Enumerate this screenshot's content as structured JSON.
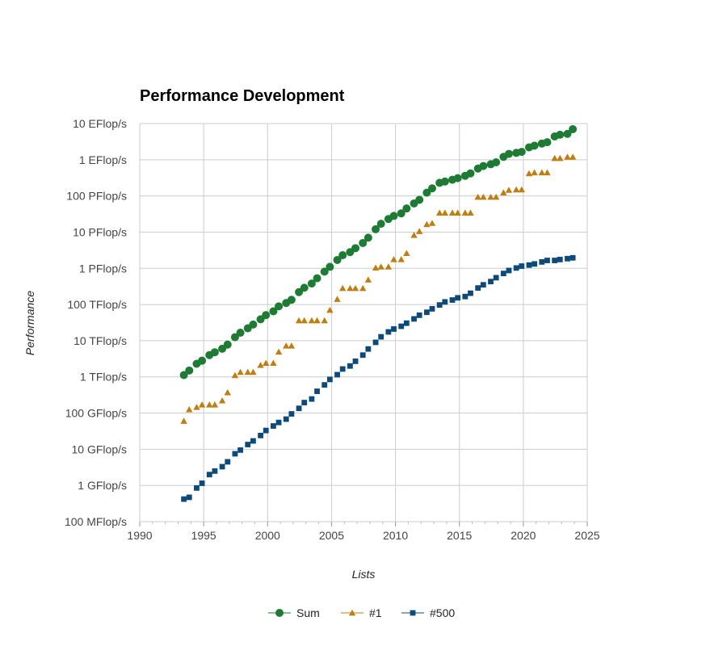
{
  "chart_data": {
    "type": "scatter",
    "title": "Performance Development",
    "xlabel": "Lists",
    "ylabel": "Performance",
    "xlim": [
      1990,
      2025
    ],
    "x_ticks": [
      1990,
      1995,
      2000,
      2005,
      2010,
      2015,
      2020,
      2025
    ],
    "y_scale": "log",
    "y_unit": "Flop/s",
    "ylim": [
      100000000.0,
      1e+19
    ],
    "y_ticks": [
      {
        "value": 1e+19,
        "label": "10 EFlop/s"
      },
      {
        "value": 1e+18,
        "label": "1 EFlop/s"
      },
      {
        "value": 1e+17,
        "label": "100 PFlop/s"
      },
      {
        "value": 1e+16,
        "label": "10 PFlop/s"
      },
      {
        "value": 1000000000000000.0,
        "label": "1 PFlop/s"
      },
      {
        "value": 100000000000000.0,
        "label": "100 TFlop/s"
      },
      {
        "value": 10000000000000.0,
        "label": "10 TFlop/s"
      },
      {
        "value": 1000000000000.0,
        "label": "1 TFlop/s"
      },
      {
        "value": 100000000000.0,
        "label": "100 GFlop/s"
      },
      {
        "value": 10000000000.0,
        "label": "10 GFlop/s"
      },
      {
        "value": 1000000000.0,
        "label": "1 GFlop/s"
      },
      {
        "value": 100000000.0,
        "label": "100 MFlop/s"
      }
    ],
    "grid": true,
    "legend_position": "bottom-center",
    "series": [
      {
        "name": "Sum",
        "color": "#1e7b34",
        "marker": "circle",
        "x": [
          1993.45,
          1993.87,
          1994.45,
          1994.87,
          1995.45,
          1995.87,
          1996.45,
          1996.87,
          1997.45,
          1997.87,
          1998.45,
          1998.87,
          1999.45,
          1999.87,
          2000.45,
          2000.87,
          2001.45,
          2001.87,
          2002.45,
          2002.87,
          2003.45,
          2003.87,
          2004.45,
          2004.87,
          2005.45,
          2005.87,
          2006.45,
          2006.87,
          2007.45,
          2007.87,
          2008.45,
          2008.87,
          2009.45,
          2009.87,
          2010.45,
          2010.87,
          2011.45,
          2011.87,
          2012.45,
          2012.87,
          2013.45,
          2013.87,
          2014.45,
          2014.87,
          2015.45,
          2015.87,
          2016.45,
          2016.87,
          2017.45,
          2017.87,
          2018.45,
          2018.87,
          2019.45,
          2019.87,
          2020.45,
          2020.87,
          2021.45,
          2021.87,
          2022.45,
          2022.87,
          2023.45,
          2023.87
        ],
        "y": [
          1120000000000.0,
          1500000000000.0,
          2300000000000.0,
          2800000000000.0,
          4000000000000.0,
          4800000000000.0,
          6000000000000.0,
          7800000000000.0,
          12500000000000.0,
          16600000000000.0,
          22000000000000.0,
          28000000000000.0,
          39000000000000.0,
          51000000000000.0,
          65000000000000.0,
          89000000000000.0,
          110000000000000.0,
          135000000000000.0,
          220000000000000.0,
          290000000000000.0,
          380000000000000.0,
          530000000000000.0,
          810000000000000.0,
          1100000000000000.0,
          1700000000000000.0,
          2300000000000000.0,
          2800000000000000.0,
          3600000000000000.0,
          5000000000000000.0,
          7000000000000000.0,
          1.2e+16,
          1.7e+16,
          2.3e+16,
          2.8e+16,
          3.3e+16,
          4.5e+16,
          6.2e+16,
          7.8e+16,
          1.23e+17,
          1.62e+17,
          2.3e+17,
          2.5e+17,
          2.8e+17,
          3.1e+17,
          3.6e+17,
          4.2e+17,
          5.7e+17,
          6.7e+17,
          7.5e+17,
          8.5e+17,
          1.2e+18,
          1.45e+18,
          1.55e+18,
          1.65e+18,
          2.2e+18,
          2.45e+18,
          2.8e+18,
          3.05e+18,
          4.4e+18,
          4.9e+18,
          5.2e+18,
          7e+18
        ]
      },
      {
        "name": "#1",
        "color": "#c07e10",
        "marker": "triangle",
        "x": [
          1993.45,
          1993.87,
          1994.45,
          1994.87,
          1995.45,
          1995.87,
          1996.45,
          1996.87,
          1997.45,
          1997.87,
          1998.45,
          1998.87,
          1999.45,
          1999.87,
          2000.45,
          2000.87,
          2001.45,
          2001.87,
          2002.45,
          2002.87,
          2003.45,
          2003.87,
          2004.45,
          2004.87,
          2005.45,
          2005.87,
          2006.45,
          2006.87,
          2007.45,
          2007.87,
          2008.45,
          2008.87,
          2009.45,
          2009.87,
          2010.45,
          2010.87,
          2011.45,
          2011.87,
          2012.45,
          2012.87,
          2013.45,
          2013.87,
          2014.45,
          2014.87,
          2015.45,
          2015.87,
          2016.45,
          2016.87,
          2017.45,
          2017.87,
          2018.45,
          2018.87,
          2019.45,
          2019.87,
          2020.45,
          2020.87,
          2021.45,
          2021.87,
          2022.45,
          2022.87,
          2023.45,
          2023.87
        ],
        "y": [
          60000000000.0,
          125000000000.0,
          145000000000.0,
          170000000000.0,
          170000000000.0,
          170000000000.0,
          220000000000.0,
          370000000000.0,
          1100000000000.0,
          1350000000000.0,
          1350000000000.0,
          1350000000000.0,
          2100000000000.0,
          2400000000000.0,
          2400000000000.0,
          4900000000000.0,
          7200000000000.0,
          7200000000000.0,
          36000000000000.0,
          36000000000000.0,
          36000000000000.0,
          36000000000000.0,
          36000000000000.0,
          70000000000000.0,
          140000000000000.0,
          280000000000000.0,
          280000000000000.0,
          280000000000000.0,
          280000000000000.0,
          480000000000000.0,
          1030000000000000.0,
          1100000000000000.0,
          1100000000000000.0,
          1760000000000000.0,
          1760000000000000.0,
          2600000000000000.0,
          8200000000000000.0,
          1.05e+16,
          1.63e+16,
          1.76e+16,
          3.4e+16,
          3.4e+16,
          3.4e+16,
          3.4e+16,
          3.4e+16,
          3.4e+16,
          9.3e+16,
          9.3e+16,
          9.3e+16,
          9.3e+16,
          1.23e+17,
          1.45e+17,
          1.49e+17,
          1.49e+17,
          4.15e+17,
          4.42e+17,
          4.42e+17,
          4.42e+17,
          1.1e+18,
          1.1e+18,
          1.19e+18,
          1.19e+18
        ]
      },
      {
        "name": "#500",
        "color": "#0d4a7a",
        "marker": "square",
        "x": [
          1993.45,
          1993.87,
          1994.45,
          1994.87,
          1995.45,
          1995.87,
          1996.45,
          1996.87,
          1997.45,
          1997.87,
          1998.45,
          1998.87,
          1999.45,
          1999.87,
          2000.45,
          2000.87,
          2001.45,
          2001.87,
          2002.45,
          2002.87,
          2003.45,
          2003.87,
          2004.45,
          2004.87,
          2005.45,
          2005.87,
          2006.45,
          2006.87,
          2007.45,
          2007.87,
          2008.45,
          2008.87,
          2009.45,
          2009.87,
          2010.45,
          2010.87,
          2011.45,
          2011.87,
          2012.45,
          2012.87,
          2013.45,
          2013.87,
          2014.45,
          2014.87,
          2015.45,
          2015.87,
          2016.45,
          2016.87,
          2017.45,
          2017.87,
          2018.45,
          2018.87,
          2019.45,
          2019.87,
          2020.45,
          2020.87,
          2021.45,
          2021.87,
          2022.45,
          2022.87,
          2023.45,
          2023.87
        ],
        "y": [
          420000000.0,
          470000000.0,
          850000000.0,
          1150000000.0,
          2000000000.0,
          2500000000.0,
          3300000000.0,
          4500000000.0,
          7500000000.0,
          9500000000.0,
          13500000000.0,
          17000000000.0,
          24000000000.0,
          33000000000.0,
          44000000000.0,
          55000000000.0,
          68000000000.0,
          95000000000.0,
          135000000000.0,
          195000000000.0,
          245000000000.0,
          400000000000.0,
          600000000000.0,
          850000000000.0,
          1150000000000.0,
          1650000000000.0,
          2000000000000.0,
          2700000000000.0,
          4000000000000.0,
          5900000000000.0,
          9000000000000.0,
          12800000000000.0,
          17500000000000.0,
          21000000000000.0,
          25000000000000.0,
          30500000000000.0,
          40000000000000.0,
          50500000000000.0,
          61000000000000.0,
          76000000000000.0,
          97000000000000.0,
          118000000000000.0,
          133000000000000.0,
          153000000000000.0,
          166000000000000.0,
          205000000000000.0,
          286000000000000.0,
          350000000000000.0,
          430000000000000.0,
          550000000000000.0,
          720000000000000.0,
          870000000000000.0,
          1020000000000000.0,
          1150000000000000.0,
          1230000000000000.0,
          1320000000000000.0,
          1500000000000000.0,
          1650000000000000.0,
          1650000000000000.0,
          1750000000000000.0,
          1850000000000000.0,
          1950000000000000.0
        ]
      }
    ]
  }
}
